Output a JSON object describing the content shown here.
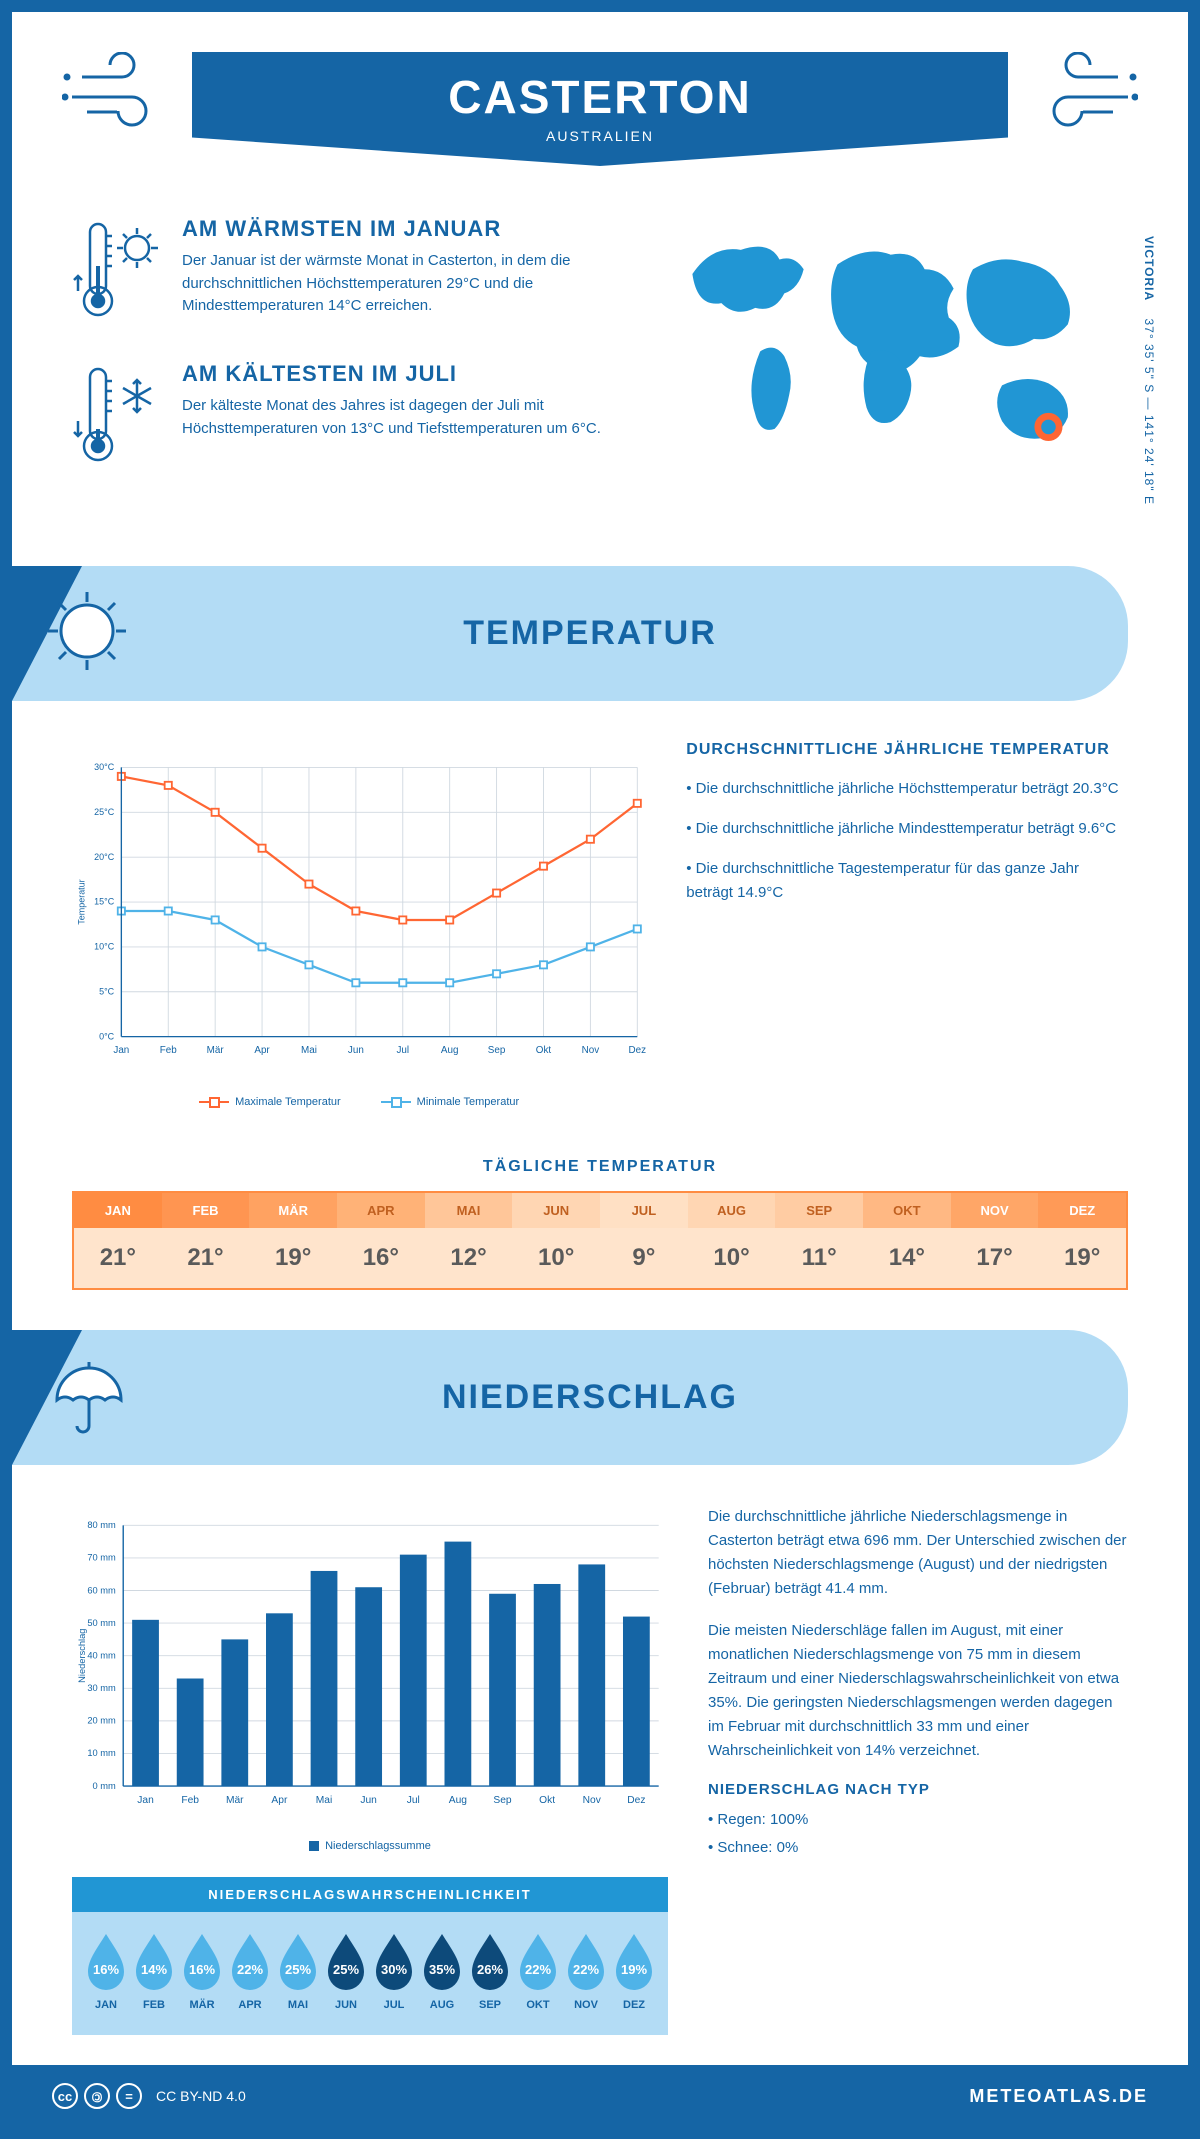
{
  "header": {
    "title": "CASTERTON",
    "subtitle": "AUSTRALIEN"
  },
  "coords": {
    "region": "VICTORIA",
    "lat": "37° 35' 5\" S",
    "lon": "141° 24' 18\" E"
  },
  "intro": {
    "warm": {
      "title": "AM WÄRMSTEN IM JANUAR",
      "text": "Der Januar ist der wärmste Monat in Casterton, in dem die durchschnittlichen Höchsttemperaturen 29°C und die Mindesttemperaturen 14°C erreichen."
    },
    "cold": {
      "title": "AM KÄLTESTEN IM JULI",
      "text": "Der kälteste Monat des Jahres ist dagegen der Juli mit Höchsttemperaturen von 13°C und Tiefsttemperaturen um 6°C."
    }
  },
  "colors": {
    "primary": "#1565a5",
    "light_blue": "#b3dcf5",
    "mid_blue": "#2196d4",
    "sky_blue": "#4fb3e8",
    "dark_drop": "#0d4a7a",
    "orange_line": "#ff6633",
    "blue_line": "#4fb3e8",
    "orange_border": "#ff8c42",
    "grid": "#d0d8e0"
  },
  "temp_section": {
    "title": "TEMPERATUR",
    "chart": {
      "months": [
        "Jan",
        "Feb",
        "Mär",
        "Apr",
        "Mai",
        "Jun",
        "Jul",
        "Aug",
        "Sep",
        "Okt",
        "Nov",
        "Dez"
      ],
      "max": [
        29,
        28,
        25,
        21,
        17,
        14,
        13,
        13,
        16,
        19,
        22,
        26
      ],
      "min": [
        14,
        14,
        13,
        10,
        8,
        6,
        6,
        6,
        7,
        8,
        10,
        12
      ],
      "ylim": [
        0,
        30
      ],
      "ytick_step": 5,
      "ylabel": "Temperatur",
      "legend_max": "Maximale Temperatur",
      "legend_min": "Minimale Temperatur"
    },
    "facts": {
      "title": "DURCHSCHNITTLICHE JÄHRLICHE TEMPERATUR",
      "items": [
        "• Die durchschnittliche jährliche Höchsttemperatur beträgt 20.3°C",
        "• Die durchschnittliche jährliche Mindesttemperatur beträgt 9.6°C",
        "• Die durchschnittliche Tagestemperatur für das ganze Jahr beträgt 14.9°C"
      ]
    },
    "daily": {
      "title": "TÄGLICHE TEMPERATUR",
      "months": [
        "JAN",
        "FEB",
        "MÄR",
        "APR",
        "MAI",
        "JUN",
        "JUL",
        "AUG",
        "SEP",
        "OKT",
        "NOV",
        "DEZ"
      ],
      "values": [
        "21°",
        "21°",
        "19°",
        "16°",
        "12°",
        "10°",
        "9°",
        "10°",
        "11°",
        "14°",
        "17°",
        "19°"
      ],
      "head_colors": [
        "#ff8c42",
        "#ff9551",
        "#ffa261",
        "#ffb277",
        "#ffc699",
        "#ffd6b3",
        "#ffe0c4",
        "#ffd6b3",
        "#ffcca3",
        "#ffb883",
        "#ffa667",
        "#ff9a57"
      ],
      "head_text": [
        "#ffffff",
        "#ffffff",
        "#ffffff",
        "#c06020",
        "#c06020",
        "#c06020",
        "#c06020",
        "#c06020",
        "#c06020",
        "#c06020",
        "#ffffff",
        "#ffffff"
      ]
    }
  },
  "precip_section": {
    "title": "NIEDERSCHLAG",
    "chart": {
      "months": [
        "Jan",
        "Feb",
        "Mär",
        "Apr",
        "Mai",
        "Jun",
        "Jul",
        "Aug",
        "Sep",
        "Okt",
        "Nov",
        "Dez"
      ],
      "values": [
        51,
        33,
        45,
        53,
        66,
        61,
        71,
        75,
        59,
        62,
        68,
        52
      ],
      "ylim": [
        0,
        80
      ],
      "ytick_step": 10,
      "ylabel": "Niederschlag",
      "legend": "Niederschlagssumme"
    },
    "text1": "Die durchschnittliche jährliche Niederschlagsmenge in Casterton beträgt etwa 696 mm. Der Unterschied zwischen der höchsten Niederschlagsmenge (August) und der niedrigsten (Februar) beträgt 41.4 mm.",
    "text2": "Die meisten Niederschläge fallen im August, mit einer monatlichen Niederschlagsmenge von 75 mm in diesem Zeitraum und einer Niederschlagswahrscheinlichkeit von etwa 35%. Die geringsten Niederschlagsmengen werden dagegen im Februar mit durchschnittlich 33 mm und einer Wahrscheinlichkeit von 14% verzeichnet.",
    "by_type": {
      "title": "NIEDERSCHLAG NACH TYP",
      "items": [
        "• Regen: 100%",
        "• Schnee: 0%"
      ]
    },
    "prob": {
      "title": "NIEDERSCHLAGSWAHRSCHEINLICHKEIT",
      "months": [
        "JAN",
        "FEB",
        "MÄR",
        "APR",
        "MAI",
        "JUN",
        "JUL",
        "AUG",
        "SEP",
        "OKT",
        "NOV",
        "DEZ"
      ],
      "values": [
        "16%",
        "14%",
        "16%",
        "22%",
        "25%",
        "25%",
        "30%",
        "35%",
        "26%",
        "22%",
        "22%",
        "19%"
      ],
      "dark": [
        false,
        false,
        false,
        false,
        false,
        true,
        true,
        true,
        true,
        false,
        false,
        false
      ]
    }
  },
  "footer": {
    "license": "CC BY-ND 4.0",
    "brand": "METEOATLAS.DE"
  }
}
